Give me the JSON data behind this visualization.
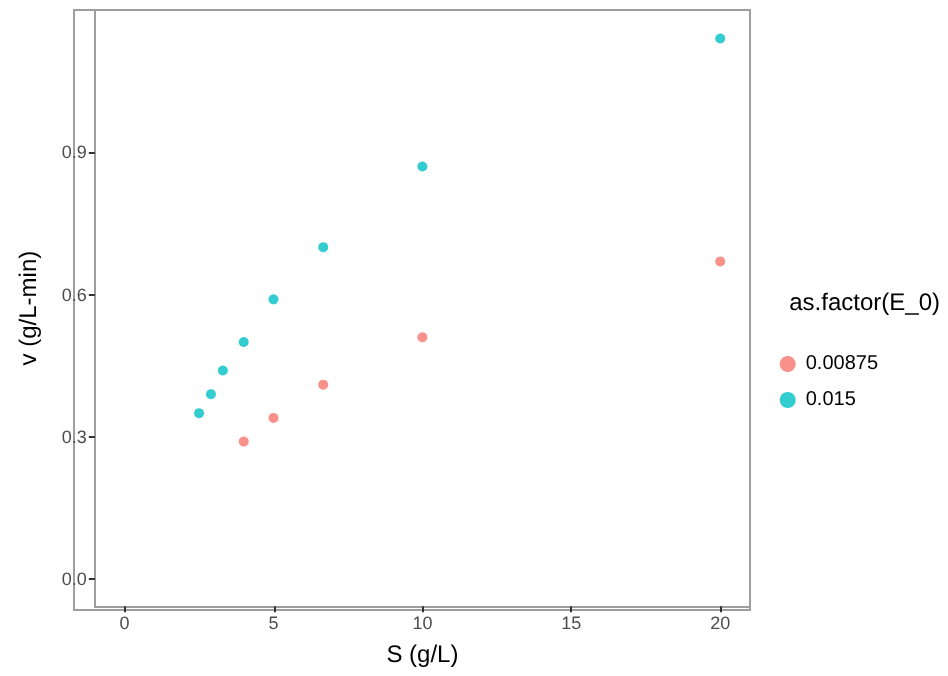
{
  "chart_data": {
    "type": "scatter",
    "xlabel": "S (g/L)",
    "ylabel": "v (g/L-min)",
    "legend_title": "as.factor(E_0)",
    "legend": "right",
    "grid": false,
    "marker": "circle",
    "xlim": [
      -1,
      21
    ],
    "xticks": [
      0,
      5,
      10,
      15,
      20
    ],
    "ylim": [
      -0.057,
      1.2
    ],
    "yticks": [
      {
        "value": 0,
        "label": "0.0"
      },
      0.3,
      0.6,
      0.9
    ],
    "series": [
      {
        "name": "0.00875",
        "color": "#f8766d",
        "x": [
          4,
          5,
          6.67,
          10,
          20
        ],
        "values": [
          0.29,
          0.34,
          0.41,
          0.51,
          0.67
        ]
      },
      {
        "name": "0.015",
        "color": "#00bfc4",
        "x": [
          2.5,
          2.9,
          3.3,
          4,
          5,
          6.67,
          10,
          20
        ],
        "values": [
          0.35,
          0.39,
          0.44,
          0.5,
          0.59,
          0.7,
          0.87,
          1.14
        ]
      }
    ]
  }
}
